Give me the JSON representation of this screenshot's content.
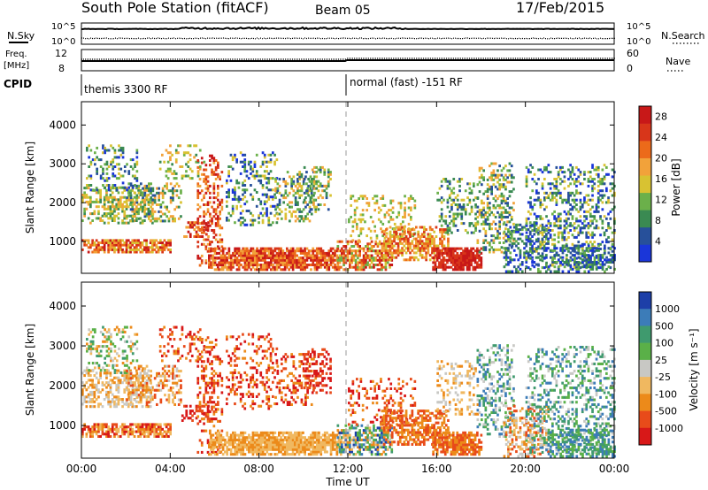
{
  "header": {
    "station": "South Pole Station (fitACF)",
    "beam": "Beam 05",
    "date": "17/Feb/2015"
  },
  "top_panels": {
    "nsky_label": "N.Sky",
    "nsearch_label": "N.Search",
    "nsky_ticks": [
      "10^5",
      "10^0"
    ],
    "freq_label_1": "Freq.",
    "freq_label_2": "[MHz]",
    "freq_ticks": [
      "12",
      "8"
    ],
    "nave_label": "Nave",
    "nave_ticks": [
      "60",
      "0"
    ],
    "cpid_label": "CPID",
    "cpid_1": "themis 3300 RF",
    "cpid_2": "normal (fast) -151 RF"
  },
  "colors": {
    "power": [
      "#1a36d9",
      "#27509a",
      "#3a8a52",
      "#6bb04a",
      "#d8c232",
      "#f2a23a",
      "#ec6a1a",
      "#d8361a",
      "#c81818"
    ],
    "velocity": [
      "#1d3fa8",
      "#3c7cb8",
      "#3f9a6e",
      "#5ab048",
      "#c8c8c4",
      "#f0b860",
      "#ec8a1a",
      "#e84b1a",
      "#d81818"
    ],
    "dashed": "#999999"
  },
  "chart_data": [
    {
      "type": "heatmap",
      "name": "power",
      "title": "",
      "xlabel": "",
      "ylabel": "Slant Range [km]",
      "x_ticks": [
        "00:00",
        "04:00",
        "08:00",
        "12:00",
        "16:00",
        "20:00",
        "00:00"
      ],
      "y_ticks": [
        "1000",
        "2000",
        "3000",
        "4000"
      ],
      "xlim": [
        0,
        24
      ],
      "ylim": [
        180,
        4600
      ],
      "colorbar_label": "Power [dB]",
      "colorbar_ticks": [
        "4",
        "8",
        "12",
        "16",
        "20",
        "24",
        "28"
      ],
      "clim": [
        0,
        30
      ]
    },
    {
      "type": "heatmap",
      "name": "velocity",
      "title": "",
      "xlabel": "Time UT",
      "ylabel": "Slant Range [km]",
      "x_ticks": [
        "00:00",
        "04:00",
        "08:00",
        "12:00",
        "16:00",
        "20:00",
        "00:00"
      ],
      "y_ticks": [
        "1000",
        "2000",
        "3000",
        "4000"
      ],
      "xlim": [
        0,
        24
      ],
      "ylim": [
        180,
        4600
      ],
      "colorbar_label": "Velocity [m s⁻¹]",
      "colorbar_ticks": [
        "1000",
        "500",
        "100",
        "25",
        "-25",
        "-100",
        "-500",
        "-1000"
      ]
    }
  ]
}
